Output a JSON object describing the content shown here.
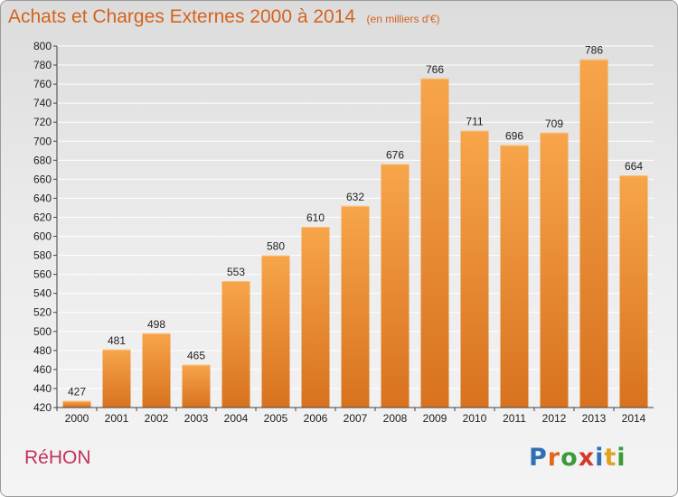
{
  "title": "Achats et Charges Externes 2000 à 2014",
  "subtitle": "(en milliers d'€)",
  "place_name": "RéHON",
  "logo": {
    "text": "Proxiti",
    "letters": [
      {
        "ch": "P",
        "color": "#2e6fb5"
      },
      {
        "ch": "r",
        "color": "#e0681f"
      },
      {
        "ch": "o",
        "color": "#3c9a3a"
      },
      {
        "ch": "x",
        "color": "#d23a2a"
      },
      {
        "ch": "i",
        "color": "#2e6fb5"
      },
      {
        "ch": "t",
        "color": "#e0a21f"
      },
      {
        "ch": "i",
        "color": "#3c9a3a"
      }
    ]
  },
  "colors": {
    "title": "#d4631c",
    "place": "#c3325a",
    "bar_light": "#f7a54a",
    "bar_dark": "#d8721e",
    "axis": "#444444"
  },
  "chart_data": {
    "type": "bar",
    "title": "Achats et Charges Externes 2000 à 2014",
    "subtitle": "(en milliers d'€)",
    "categories": [
      "2000",
      "2001",
      "2002",
      "2003",
      "2004",
      "2005",
      "2006",
      "2007",
      "2008",
      "2009",
      "2010",
      "2011",
      "2012",
      "2013",
      "2014"
    ],
    "values": [
      427,
      481,
      498,
      465,
      553,
      580,
      610,
      632,
      676,
      766,
      711,
      696,
      709,
      786,
      664
    ],
    "ylim": [
      420,
      800
    ],
    "yticks": [
      420,
      440,
      460,
      480,
      500,
      520,
      540,
      560,
      580,
      600,
      620,
      640,
      660,
      680,
      700,
      720,
      740,
      760,
      780,
      800
    ],
    "grid": true,
    "data_labels": true
  }
}
